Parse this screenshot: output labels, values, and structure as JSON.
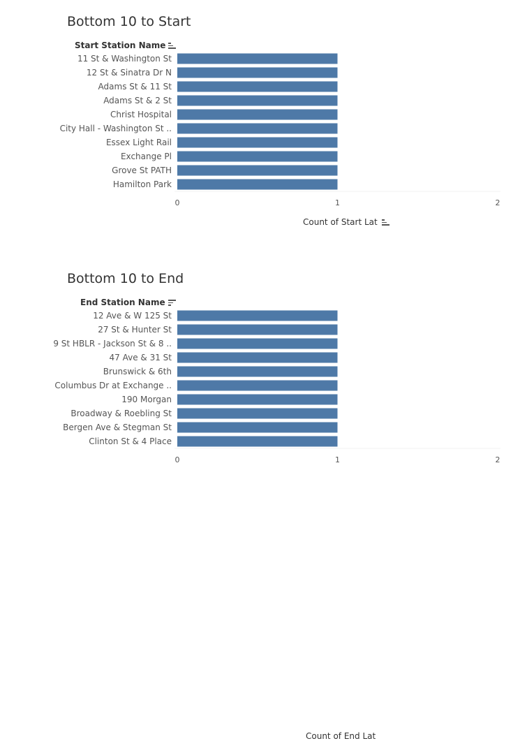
{
  "chart_data": [
    {
      "type": "bar",
      "orientation": "horizontal",
      "title": "Bottom 10 to Start",
      "dimension_header": "Start Station Name",
      "xlabel": "Count of Start Lat",
      "categories": [
        "11 St & Washington St",
        "12 St & Sinatra Dr N",
        "Adams St & 11 St",
        "Adams St & 2 St",
        "Christ Hospital",
        "City Hall - Washington St ..",
        "Essex Light Rail",
        "Exchange Pl",
        "Grove St PATH",
        "Hamilton Park"
      ],
      "values": [
        1,
        1,
        1,
        1,
        1,
        1,
        1,
        1,
        1,
        1
      ],
      "xlim": [
        0,
        2
      ],
      "xticks": [
        "0",
        "1",
        "2"
      ],
      "bar_color": "#4e79a7",
      "grid": false
    },
    {
      "type": "bar",
      "orientation": "horizontal",
      "title": "Bottom 10 to End",
      "dimension_header": "End Station Name",
      "xlabel": "Count of End Lat",
      "categories": [
        "12 Ave & W 125 St",
        "27 St & Hunter St",
        "9 St HBLR - Jackson St & 8 ..",
        "47 Ave & 31 St",
        "Brunswick & 6th",
        "Columbus Dr at Exchange ..",
        "190 Morgan",
        "Broadway & Roebling St",
        "Bergen Ave & Stegman St",
        "Clinton St & 4 Place"
      ],
      "values": [
        1,
        1,
        1,
        1,
        1,
        1,
        1,
        1,
        1,
        1
      ],
      "xlim": [
        0,
        2
      ],
      "xticks": [
        "0",
        "1",
        "2"
      ],
      "bar_color": "#4e79a7",
      "grid": false
    }
  ]
}
